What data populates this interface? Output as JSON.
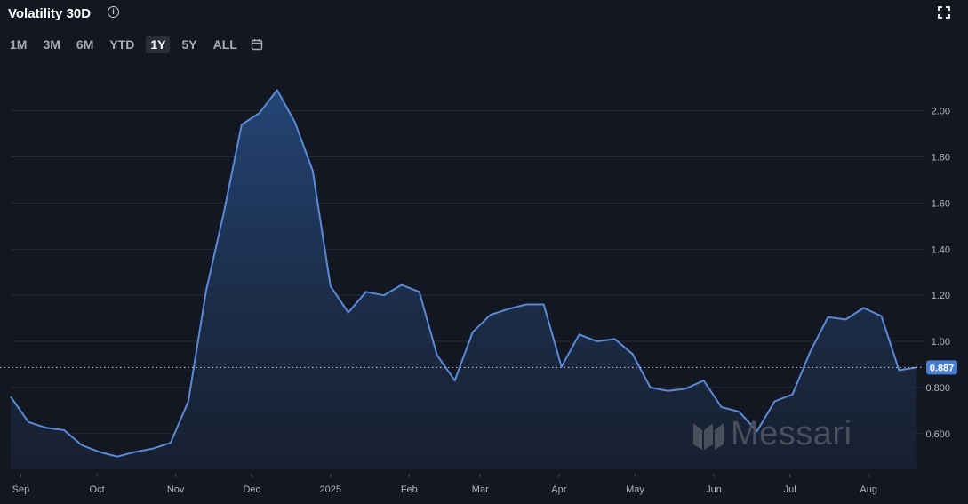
{
  "header": {
    "title": "Volatility 30D",
    "info_icon": "info-icon",
    "expand_icon": "expand-icon"
  },
  "ranges": [
    {
      "label": "1M",
      "active": false
    },
    {
      "label": "3M",
      "active": false
    },
    {
      "label": "6M",
      "active": false
    },
    {
      "label": "YTD",
      "active": false
    },
    {
      "label": "1Y",
      "active": true
    },
    {
      "label": "5Y",
      "active": false
    },
    {
      "label": "ALL",
      "active": false
    }
  ],
  "calendar_icon": "calendar-icon",
  "watermark": {
    "text": "Messari",
    "icon": "messari-logo-icon"
  },
  "colors": {
    "background": "#131722",
    "line": "#5b8ad6",
    "fill_top": "#24477a",
    "grid": "#2a2e39",
    "last_value_badge": "#4a7ccd"
  },
  "chart_data": {
    "type": "area",
    "title": "Volatility 30D",
    "xlabel": "",
    "ylabel": "",
    "ylim": [
      0.445,
      2.095
    ],
    "y_axis_position": "right",
    "y_ticks": [
      "2.00",
      "1.80",
      "1.60",
      "1.40",
      "1.20",
      "1.00",
      "0.800",
      "0.600"
    ],
    "y_tick_values": [
      2.0,
      1.8,
      1.6,
      1.4,
      1.2,
      1.0,
      0.8,
      0.6
    ],
    "xlim": [
      "2024-08-28",
      "2025-08-23"
    ],
    "x_ticks": [
      {
        "label": "Sep",
        "date": "2024-09-01"
      },
      {
        "label": "Oct",
        "date": "2024-10-01"
      },
      {
        "label": "Nov",
        "date": "2024-11-01"
      },
      {
        "label": "Dec",
        "date": "2024-12-01"
      },
      {
        "label": "2025",
        "date": "2025-01-01"
      },
      {
        "label": "Feb",
        "date": "2025-02-01"
      },
      {
        "label": "Mar",
        "date": "2025-03-01"
      },
      {
        "label": "Apr",
        "date": "2025-04-01"
      },
      {
        "label": "May",
        "date": "2025-05-01"
      },
      {
        "label": "Jun",
        "date": "2025-06-01"
      },
      {
        "label": "Jul",
        "date": "2025-07-01"
      },
      {
        "label": "Aug",
        "date": "2025-08-01"
      }
    ],
    "grid": true,
    "last_value": 0.887,
    "last_value_label": "0.887",
    "series": [
      {
        "x": [
          "2024-08-28",
          "2024-09-04",
          "2024-09-11",
          "2024-09-18",
          "2024-09-25",
          "2024-10-02",
          "2024-10-09",
          "2024-10-16",
          "2024-10-23",
          "2024-10-30",
          "2024-11-06",
          "2024-11-13",
          "2024-11-20",
          "2024-11-27",
          "2024-12-04",
          "2024-12-11",
          "2024-12-18",
          "2024-12-25",
          "2025-01-01",
          "2025-01-08",
          "2025-01-15",
          "2025-01-22",
          "2025-01-29",
          "2025-02-05",
          "2025-02-12",
          "2025-02-19",
          "2025-02-26",
          "2025-03-05",
          "2025-03-12",
          "2025-03-19",
          "2025-03-26",
          "2025-04-02",
          "2025-04-09",
          "2025-04-16",
          "2025-04-23",
          "2025-04-30",
          "2025-05-07",
          "2025-05-14",
          "2025-05-21",
          "2025-05-28",
          "2025-06-04",
          "2025-06-11",
          "2025-06-18",
          "2025-06-25",
          "2025-07-02",
          "2025-07-09",
          "2025-07-16",
          "2025-07-23",
          "2025-07-30",
          "2025-08-06",
          "2025-08-13",
          "2025-08-20"
        ],
        "values": [
          0.76,
          0.65,
          0.625,
          0.615,
          0.55,
          0.52,
          0.5,
          0.52,
          0.535,
          0.56,
          0.74,
          1.22,
          1.56,
          1.94,
          1.99,
          2.09,
          1.95,
          1.74,
          1.24,
          1.125,
          1.215,
          1.2,
          1.245,
          1.215,
          0.94,
          0.83,
          1.04,
          1.115,
          1.14,
          1.16,
          1.16,
          0.89,
          1.03,
          1.0,
          1.01,
          0.945,
          0.8,
          0.785,
          0.795,
          0.83,
          0.715,
          0.695,
          0.61,
          0.74,
          0.77,
          0.955,
          1.105,
          1.095,
          1.145,
          1.11,
          0.875,
          0.887
        ]
      }
    ]
  }
}
